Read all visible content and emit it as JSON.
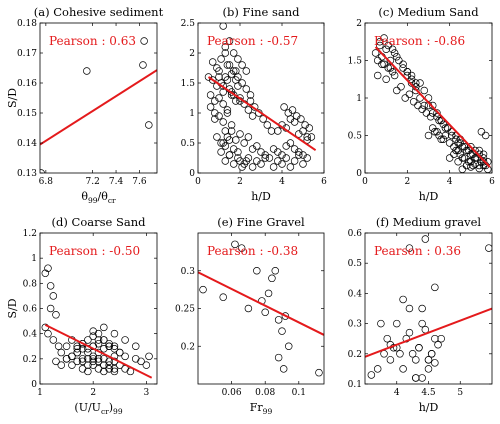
{
  "colors": {
    "fit_line": "#e41a1c",
    "marker": "#000000",
    "axis": "#000000"
  },
  "chart_data": [
    {
      "type": "scatter",
      "title": "(a) Cohesive sediment",
      "xlabel": "θ99/θcr",
      "xlabel_main": "θ",
      "xlabel_sub1": "99",
      "xlabel_mid": "/θ",
      "xlabel_sub2": "cr",
      "ylabel": "S/D",
      "annotation": "Pearson : 0.63",
      "xlim": [
        6.75,
        7.75
      ],
      "ylim": [
        0.13,
        0.18
      ],
      "xticks": [
        6.8,
        7.2,
        7.4,
        7.6
      ],
      "xtick_labels": [
        "6.8",
        "7.2",
        "7.4",
        "7.6"
      ],
      "yticks": [
        0.13,
        0.14,
        0.15,
        0.16,
        0.17,
        0.18
      ],
      "ytick_labels": [
        "0.13",
        "0.14",
        "0.15",
        "0.16",
        "0.17",
        "0.18"
      ],
      "x": [
        6.76,
        7.15,
        7.63,
        7.64,
        7.68
      ],
      "y": [
        0.13,
        0.164,
        0.166,
        0.174,
        0.146
      ],
      "fit": {
        "x": [
          6.75,
          7.75
        ],
        "y": [
          0.1395,
          0.1643
        ]
      }
    },
    {
      "type": "scatter",
      "title": "(b) Fine sand",
      "xlabel": "h/D",
      "xlabel_main": "h/D",
      "ylabel": "",
      "annotation": "Pearson : -0.57",
      "xlim": [
        0,
        6
      ],
      "ylim": [
        0,
        2.5
      ],
      "xticks": [
        0,
        2,
        4,
        6
      ],
      "xtick_labels": [
        "0",
        "2",
        "4",
        "6"
      ],
      "yticks": [
        0,
        0.5,
        1,
        1.5,
        2,
        2.5
      ],
      "ytick_labels": [
        "0",
        "0.5",
        "1",
        "1.5",
        "2",
        "2.5"
      ],
      "x": [
        0.5,
        0.6,
        0.7,
        0.8,
        0.9,
        1.0,
        1.1,
        1.2,
        1.3,
        1.4,
        1.5,
        1.6,
        1.7,
        1.8,
        1.9,
        2.0,
        0.6,
        0.8,
        1.0,
        1.2,
        1.4,
        1.6,
        1.8,
        0.7,
        0.9,
        1.1,
        1.3,
        1.5,
        1.7,
        1.9,
        2.1,
        2.3,
        2.5,
        0.8,
        1.0,
        1.2,
        1.4,
        1.6,
        1.0,
        1.2,
        1.4,
        1.6,
        1.8,
        2.0,
        2.2,
        2.4,
        2.6,
        1.3,
        1.5,
        1.7,
        1.9,
        2.1,
        2.3,
        2.5,
        2.7,
        2.9,
        3.1,
        3.3,
        3.5,
        1.2,
        1.4,
        1.6,
        1.8,
        2.0,
        2.2,
        2.4,
        2.6,
        2.8,
        3.0,
        3.2,
        3.4,
        3.6,
        3.8,
        4.0,
        4.2,
        4.4,
        4.6,
        4.8,
        5.0,
        5.2,
        3.8,
        4.0,
        4.2,
        4.4,
        4.6,
        4.8,
        5.0,
        5.2,
        5.4,
        4.1,
        4.3,
        4.5,
        4.7,
        4.9,
        5.1,
        5.3,
        2.0,
        2.2,
        2.4,
        2.6,
        2.8,
        3.0,
        3.2,
        1.3,
        1.5,
        1.7,
        1.9,
        2.1,
        2.3,
        1.1,
        1.3,
        1.5,
        1.7,
        1.9,
        0.9,
        1.1,
        1.3,
        1.5,
        3.6,
        3.8,
        4.0,
        4.2,
        4.4,
        4.6,
        4.8,
        5.0,
        5.2,
        1.2
      ],
      "y": [
        1.6,
        1.3,
        1.55,
        1.2,
        1.45,
        1.7,
        1.5,
        1.35,
        1.6,
        1.8,
        1.4,
        1.65,
        1.3,
        1.55,
        1.45,
        1.2,
        1.1,
        1.0,
        1.25,
        1.15,
        1.05,
        1.3,
        1.2,
        1.85,
        1.75,
        1.9,
        2.0,
        1.8,
        1.7,
        1.6,
        1.5,
        1.4,
        1.3,
        0.9,
        0.95,
        0.85,
        1.0,
        0.8,
        1.6,
        1.45,
        1.55,
        1.35,
        1.7,
        1.25,
        1.15,
        1.05,
        0.95,
        2.1,
        2.2,
        2.0,
        1.9,
        1.8,
        1.7,
        1.2,
        1.1,
        1.0,
        0.9,
        0.8,
        0.7,
        0.5,
        0.6,
        0.7,
        0.55,
        0.65,
        0.5,
        0.6,
        0.4,
        0.45,
        0.35,
        0.3,
        0.25,
        0.4,
        0.35,
        0.3,
        0.45,
        0.5,
        0.4,
        0.35,
        0.3,
        0.6,
        0.7,
        0.8,
        0.75,
        0.9,
        0.85,
        0.65,
        0.7,
        0.55,
        0.6,
        1.1,
        1.0,
        1.05,
        0.95,
        0.9,
        0.8,
        0.75,
        0.2,
        0.15,
        0.25,
        0.1,
        0.2,
        0.15,
        0.25,
        0.2,
        0.3,
        0.15,
        0.25,
        0.1,
        0.2,
        0.35,
        0.45,
        0.3,
        0.4,
        0.35,
        0.6,
        0.5,
        0.7,
        0.55,
        0.1,
        0.2,
        0.15,
        0.25,
        0.1,
        0.2,
        0.3,
        0.15,
        0.25,
        2.45
      ],
      "fit": {
        "x": [
          0.5,
          5.6
        ],
        "y": [
          1.6,
          0.38
        ]
      }
    },
    {
      "type": "scatter",
      "title": "(c) Medium Sand",
      "xlabel": "h/D",
      "xlabel_main": "h/D",
      "ylabel": "",
      "annotation": "Pearson : -0.86",
      "xlim": [
        0,
        6
      ],
      "ylim": [
        0,
        2
      ],
      "xticks": [
        0,
        2,
        4,
        6
      ],
      "xtick_labels": [
        "0",
        "2",
        "4",
        "6"
      ],
      "yticks": [
        0,
        0.5,
        1,
        1.5,
        2
      ],
      "ytick_labels": [
        "0",
        "0.5",
        "1",
        "1.5",
        "2"
      ],
      "x": [
        0.5,
        0.6,
        0.7,
        0.8,
        0.9,
        1.0,
        1.1,
        1.2,
        1.3,
        1.4,
        0.6,
        0.8,
        1.0,
        1.2,
        1.4,
        0.7,
        0.9,
        1.1,
        1.3,
        1.5,
        1.6,
        1.8,
        2.0,
        2.2,
        2.4,
        1.5,
        1.7,
        1.9,
        2.1,
        2.3,
        2.5,
        2.7,
        2.9,
        3.1,
        2.6,
        2.8,
        3.0,
        3.2,
        3.4,
        3.6,
        3.8,
        3.0,
        3.2,
        3.4,
        3.6,
        3.8,
        4.0,
        4.2,
        4.4,
        3.5,
        3.7,
        3.9,
        4.1,
        4.3,
        4.5,
        4.7,
        4.9,
        5.1,
        4.0,
        4.2,
        4.4,
        4.6,
        4.8,
        5.0,
        5.2,
        5.4,
        5.6,
        4.3,
        4.5,
        4.7,
        4.9,
        5.1,
        5.3,
        5.5,
        5.7,
        4.6,
        4.8,
        5.0,
        5.2,
        5.4,
        5.6,
        5.8,
        4.4,
        4.6,
        4.8,
        5.0,
        5.2,
        5.4,
        5.6,
        2.0,
        2.2,
        2.4,
        2.6,
        2.8,
        1.8,
        2.0,
        2.2,
        2.4,
        3.3,
        3.5,
        3.7,
        3.9,
        4.1,
        4.3,
        4.5,
        3.0,
        3.2,
        3.4,
        3.6,
        5.0,
        5.2,
        5.4,
        5.6,
        5.8,
        5.5,
        5.7
      ],
      "y": [
        1.6,
        1.5,
        1.7,
        1.55,
        1.45,
        1.65,
        1.4,
        1.5,
        1.35,
        1.6,
        1.3,
        1.45,
        1.25,
        1.4,
        1.3,
        1.75,
        1.8,
        1.7,
        1.65,
        1.55,
        1.5,
        1.4,
        1.35,
        1.3,
        1.2,
        1.1,
        1.15,
        1.0,
        1.05,
        0.95,
        0.9,
        0.85,
        0.8,
        0.75,
        1.2,
        1.1,
        1.0,
        0.9,
        0.8,
        0.7,
        0.6,
        0.5,
        0.6,
        0.55,
        0.45,
        0.5,
        0.4,
        0.35,
        0.3,
        0.7,
        0.65,
        0.6,
        0.5,
        0.45,
        0.4,
        0.35,
        0.3,
        0.25,
        0.2,
        0.25,
        0.15,
        0.2,
        0.1,
        0.15,
        0.2,
        0.1,
        0.15,
        0.3,
        0.25,
        0.2,
        0.15,
        0.1,
        0.2,
        0.15,
        0.1,
        0.05,
        0.1,
        0.08,
        0.12,
        0.06,
        0.1,
        0.05,
        0.4,
        0.35,
        0.3,
        0.25,
        0.2,
        0.3,
        0.25,
        1.3,
        1.2,
        1.1,
        1.0,
        0.9,
        1.45,
        1.35,
        1.25,
        1.15,
        0.55,
        0.5,
        0.45,
        0.6,
        0.55,
        0.5,
        0.45,
        0.9,
        0.8,
        0.75,
        0.7,
        0.35,
        0.3,
        0.25,
        0.2,
        0.15,
        0.55,
        0.5
      ],
      "fit": {
        "x": [
          0.5,
          5.9
        ],
        "y": [
          1.68,
          0.08
        ]
      }
    },
    {
      "type": "scatter",
      "title": "(d) Coarse Sand",
      "xlabel": "(U/Ucr)99",
      "xlabel_main": "(U/U",
      "xlabel_sub1": "cr",
      "xlabel_mid": ")",
      "xlabel_sub2": "99",
      "ylabel": "S/D",
      "annotation": "Pearson : -0.50",
      "xlim": [
        1,
        3.2
      ],
      "ylim": [
        0,
        1.2
      ],
      "xticks": [
        1,
        2,
        3
      ],
      "xtick_labels": [
        "1",
        "2",
        "3"
      ],
      "yticks": [
        0,
        0.2,
        0.4,
        0.6,
        0.8,
        1.0,
        1.2
      ],
      "ytick_labels": [
        "0",
        "0.2",
        "0.4",
        "0.6",
        "0.8",
        "1",
        "1.2"
      ],
      "x": [
        1.1,
        1.15,
        1.2,
        1.25,
        1.1,
        1.2,
        1.3,
        1.15,
        1.25,
        1.35,
        1.4,
        1.5,
        1.6,
        1.7,
        1.8,
        1.9,
        2.0,
        2.1,
        2.2,
        2.3,
        2.4,
        1.5,
        1.6,
        1.7,
        1.8,
        1.9,
        2.0,
        2.1,
        2.2,
        2.3,
        2.4,
        2.5,
        1.6,
        1.7,
        1.8,
        1.9,
        2.0,
        2.1,
        2.2,
        2.3,
        2.4,
        1.7,
        1.8,
        1.9,
        2.0,
        2.1,
        2.2,
        2.3,
        2.4,
        2.5,
        2.6,
        1.8,
        1.9,
        2.0,
        2.1,
        2.2,
        2.3,
        2.4,
        1.9,
        2.0,
        2.1,
        2.2,
        2.3,
        2.0,
        2.1,
        2.2,
        2.3,
        2.4,
        2.5,
        2.6,
        2.7,
        2.8,
        2.9,
        3.0,
        1.3,
        1.4,
        1.5,
        1.6,
        1.7,
        1.8,
        2.0,
        2.2,
        2.4,
        2.6,
        2.8,
        3.05
      ],
      "y": [
        0.88,
        0.92,
        0.78,
        0.7,
        0.45,
        0.6,
        0.55,
        0.4,
        0.35,
        0.3,
        0.25,
        0.3,
        0.35,
        0.28,
        0.32,
        0.25,
        0.3,
        0.35,
        0.28,
        0.32,
        0.3,
        0.2,
        0.22,
        0.25,
        0.18,
        0.2,
        0.22,
        0.25,
        0.2,
        0.18,
        0.22,
        0.25,
        0.15,
        0.18,
        0.2,
        0.15,
        0.18,
        0.2,
        0.15,
        0.12,
        0.18,
        0.3,
        0.32,
        0.35,
        0.38,
        0.4,
        0.35,
        0.3,
        0.28,
        0.25,
        0.22,
        0.12,
        0.1,
        0.15,
        0.12,
        0.1,
        0.15,
        0.12,
        0.28,
        0.3,
        0.32,
        0.35,
        0.3,
        0.2,
        0.18,
        0.15,
        0.12,
        0.1,
        0.15,
        0.12,
        0.1,
        0.2,
        0.18,
        0.15,
        0.18,
        0.15,
        0.2,
        0.22,
        0.25,
        0.28,
        0.42,
        0.45,
        0.4,
        0.35,
        0.3,
        0.22
      ],
      "fit": {
        "x": [
          1.1,
          3.1
        ],
        "y": [
          0.47,
          0.05
        ]
      }
    },
    {
      "type": "scatter",
      "title": "(e) Fine Gravel",
      "xlabel": "Fr99",
      "xlabel_main": "Fr",
      "xlabel_sub1": "99",
      "ylabel": "",
      "annotation": "Pearson : -0.38",
      "xlim": [
        0.04,
        0.115
      ],
      "ylim": [
        0.15,
        0.35
      ],
      "xticks": [
        0.06,
        0.08,
        0.1
      ],
      "xtick_labels": [
        "0.06",
        "0.08",
        "0.1"
      ],
      "yticks": [
        0.2,
        0.25,
        0.3
      ],
      "ytick_labels": [
        "0.2",
        "0.25",
        "0.3"
      ],
      "x": [
        0.043,
        0.055,
        0.062,
        0.066,
        0.07,
        0.075,
        0.08,
        0.082,
        0.084,
        0.086,
        0.088,
        0.09,
        0.092,
        0.094,
        0.112,
        0.088,
        0.091,
        0.078
      ],
      "y": [
        0.275,
        0.265,
        0.335,
        0.33,
        0.25,
        0.3,
        0.245,
        0.27,
        0.29,
        0.3,
        0.235,
        0.22,
        0.24,
        0.2,
        0.165,
        0.185,
        0.17,
        0.26
      ],
      "fit": {
        "x": [
          0.04,
          0.115
        ],
        "y": [
          0.298,
          0.215
        ]
      }
    },
    {
      "type": "scatter",
      "title": "(f) Medium gravel",
      "xlabel": "h/D",
      "xlabel_main": "h/D",
      "ylabel": "",
      "annotation": "Pearson : 0.36",
      "xlim": [
        3.5,
        5.5
      ],
      "ylim": [
        0.1,
        0.6
      ],
      "xticks": [
        4,
        4.5,
        5
      ],
      "xtick_labels": [
        "4",
        "4.5",
        "5"
      ],
      "yticks": [
        0.1,
        0.2,
        0.3,
        0.4,
        0.5,
        0.6
      ],
      "ytick_labels": [
        "0.1",
        "0.2",
        "0.3",
        "0.4",
        "0.5",
        "0.6"
      ],
      "x": [
        3.6,
        3.7,
        3.8,
        3.85,
        3.9,
        3.95,
        4.0,
        4.05,
        4.1,
        4.15,
        4.2,
        4.25,
        4.3,
        4.35,
        4.4,
        4.45,
        4.5,
        4.55,
        4.6,
        4.65,
        3.75,
        3.9,
        4.0,
        4.1,
        4.2,
        4.3,
        4.4,
        4.5,
        4.6,
        4.7,
        4.2,
        4.3,
        4.4,
        4.5,
        4.6,
        4.35,
        4.45,
        4.55,
        5.45
      ],
      "y": [
        0.13,
        0.15,
        0.2,
        0.25,
        0.18,
        0.22,
        0.3,
        0.2,
        0.15,
        0.25,
        0.35,
        0.2,
        0.18,
        0.22,
        0.12,
        0.28,
        0.15,
        0.2,
        0.17,
        0.23,
        0.3,
        0.23,
        0.22,
        0.38,
        0.27,
        0.12,
        0.3,
        0.18,
        0.42,
        0.25,
        0.55,
        0.12,
        0.35,
        0.18,
        0.25,
        0.22,
        0.58,
        0.2,
        0.55
      ],
      "fit": {
        "x": [
          3.5,
          5.5
        ],
        "y": [
          0.19,
          0.35
        ]
      }
    }
  ]
}
